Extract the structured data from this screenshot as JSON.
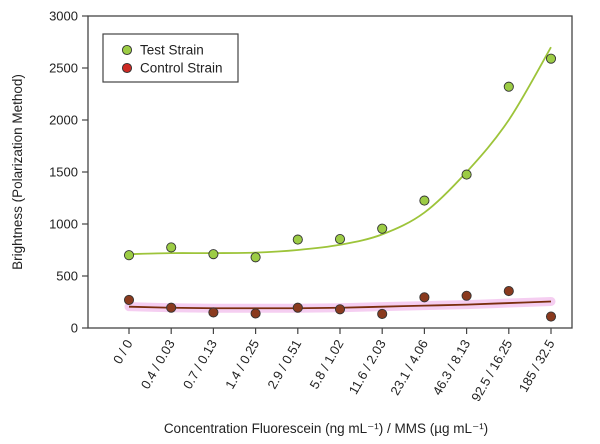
{
  "chart_data": {
    "type": "scatter",
    "title": "",
    "xlabel": "Concentration Fluorescein (ng mL⁻¹) / MMS (µg mL⁻¹)",
    "ylabel": "Brightness (Polarization Method)",
    "ylim": [
      0,
      3000
    ],
    "yticks": [
      0,
      500,
      1000,
      1500,
      2000,
      2500,
      3000
    ],
    "categories": [
      "0 / 0",
      "0.4 / 0.03",
      "0.7 / 0.13",
      "1.4 / 0.25",
      "2.9 / 0.51",
      "5.8 / 1.02",
      "11.6 / 2.03",
      "23.1 / 4.06",
      "46.3 / 8.13",
      "92.5 / 16.25",
      "185 / 32.5"
    ],
    "grid": false,
    "legend_position": "top-left",
    "series": [
      {
        "name": "Test Strain",
        "color": "#9ccc45",
        "line_color": "#9dc43a",
        "values": [
          700,
          775,
          710,
          680,
          850,
          855,
          955,
          1225,
          1475,
          2320,
          2590
        ],
        "trend": [
          710,
          720,
          720,
          725,
          750,
          800,
          900,
          1110,
          1500,
          2000,
          2700
        ]
      },
      {
        "name": "Control Strain",
        "color": "#cc2a24",
        "line_color": "#7a2e0e",
        "values": [
          270,
          195,
          150,
          140,
          195,
          180,
          135,
          295,
          310,
          355,
          110
        ],
        "trend": [
          205,
          195,
          190,
          190,
          190,
          195,
          205,
          215,
          225,
          240,
          255
        ]
      }
    ]
  }
}
